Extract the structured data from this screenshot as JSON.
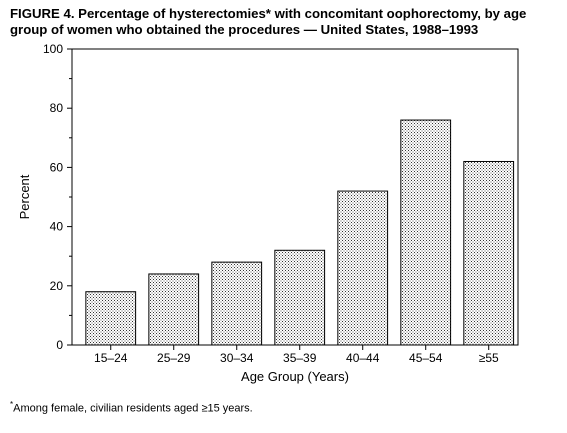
{
  "figure": {
    "title": "FIGURE 4. Percentage of hysterectomies* with concomitant oophorectomy, by age group of women who obtained the procedures — United States, 1988–1993",
    "footnote_marker": "*",
    "footnote_text": "Among female, civilian residents aged ≥15 years."
  },
  "chart_data": {
    "type": "bar",
    "title": "FIGURE 4. Percentage of hysterectomies* with concomitant oophorectomy, by age group of women who obtained the procedures — United States, 1988–1993",
    "categories": [
      "15–24",
      "25–29",
      "30–34",
      "35–39",
      "40–44",
      "45–54",
      "≥55"
    ],
    "values": [
      18,
      24,
      28,
      32,
      52,
      76,
      62
    ],
    "xlabel": "Age Group (Years)",
    "ylabel": "Percent",
    "ylim": [
      0,
      100
    ],
    "yticks": [
      0,
      20,
      40,
      60,
      80,
      100
    ],
    "grid": false,
    "bar_fill": "stippled"
  }
}
